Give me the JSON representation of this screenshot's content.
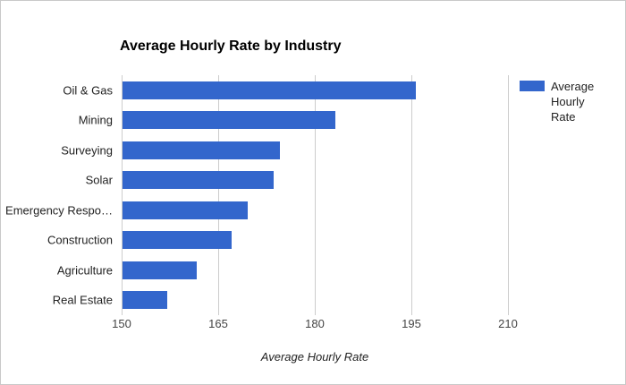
{
  "chart_data": {
    "type": "bar",
    "orientation": "horizontal",
    "title": "Average Hourly Rate by Industry",
    "xlabel": "Average Hourly Rate",
    "ylabel": "",
    "categories": [
      "Oil & Gas",
      "Mining",
      "Surveying",
      "Solar",
      "Emergency Respo…",
      "Construction",
      "Agriculture",
      "Real Estate"
    ],
    "values": [
      195.5,
      183,
      174.5,
      173.5,
      169.5,
      167,
      161.5,
      157
    ],
    "xlim": [
      150,
      210
    ],
    "xticks": [
      150,
      165,
      180,
      195,
      210
    ],
    "grid": true,
    "legend": {
      "position": "right",
      "entries": [
        "Average Hourly Rate"
      ]
    },
    "colors": {
      "bar": "#3366cc",
      "gridline": "#cccccc",
      "tick_text": "#444444",
      "label_text": "#222222",
      "border": "#c9c9c9"
    }
  }
}
